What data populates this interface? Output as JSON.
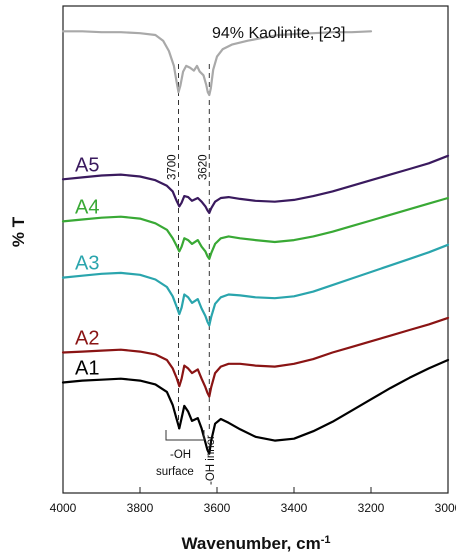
{
  "chart_data": {
    "type": "line",
    "title": "94% Kaolinite, [23]",
    "xlabel": "Wavenumber, cm",
    "xlabel_superscript": "-1",
    "ylabel": "% T",
    "xlim": [
      4000,
      3000
    ],
    "x_reversed": true,
    "x_ticks": [
      "4000",
      "3800",
      "3600",
      "3400",
      "3200",
      "3000"
    ],
    "y_ticks": [],
    "grid": false,
    "y_units": "relative transmittance, stacked with offsets",
    "markers": [
      {
        "x": 3700,
        "label": "3700",
        "style": "dashed"
      },
      {
        "x": 3620,
        "label": "3620",
        "style": "dashed"
      }
    ],
    "annotations": [
      {
        "text_lines": [
          "-OH",
          "surface"
        ],
        "near_x": 3690
      },
      {
        "text_lines": [
          "-OH inner"
        ],
        "near_x": 3620,
        "rotated": true
      }
    ],
    "series": [
      {
        "name": "A5",
        "color": "#3a1a5e",
        "x": [
          4000,
          3950,
          3900,
          3850,
          3800,
          3760,
          3730,
          3715,
          3705,
          3698,
          3692,
          3685,
          3675,
          3665,
          3650,
          3640,
          3630,
          3625,
          3620,
          3615,
          3605,
          3590,
          3570,
          3540,
          3500,
          3450,
          3400,
          3350,
          3300,
          3250,
          3200,
          3150,
          3100,
          3050,
          3000
        ],
        "y": [
          97.5,
          97.7,
          97.9,
          98.0,
          97.8,
          97.4,
          96.8,
          96.2,
          95.2,
          94.6,
          95.0,
          95.7,
          95.6,
          95.2,
          95.5,
          95.1,
          94.6,
          94.2,
          93.9,
          94.4,
          95.1,
          95.5,
          95.6,
          95.4,
          95.2,
          95.1,
          95.3,
          95.7,
          96.2,
          96.8,
          97.4,
          98.0,
          98.6,
          99.2,
          100.0
        ]
      },
      {
        "name": "A4",
        "color": "#39a935",
        "x": [
          4000,
          3950,
          3900,
          3850,
          3800,
          3760,
          3730,
          3715,
          3705,
          3698,
          3692,
          3685,
          3675,
          3665,
          3650,
          3640,
          3630,
          3625,
          3620,
          3615,
          3605,
          3590,
          3570,
          3540,
          3500,
          3450,
          3400,
          3350,
          3300,
          3250,
          3200,
          3150,
          3100,
          3050,
          3000
        ],
        "y": [
          93.0,
          93.2,
          93.4,
          93.5,
          93.3,
          92.8,
          92.1,
          91.2,
          90.4,
          89.8,
          90.3,
          91.2,
          91.0,
          90.6,
          91.0,
          90.3,
          89.8,
          89.3,
          89.0,
          89.6,
          90.6,
          91.2,
          91.4,
          91.2,
          91.0,
          90.8,
          91.0,
          91.4,
          91.9,
          92.5,
          93.1,
          93.7,
          94.3,
          94.9,
          95.5
        ]
      },
      {
        "name": "A3",
        "color": "#2aa5ad",
        "x": [
          4000,
          3950,
          3900,
          3850,
          3800,
          3760,
          3730,
          3715,
          3705,
          3698,
          3692,
          3685,
          3675,
          3665,
          3650,
          3640,
          3630,
          3625,
          3620,
          3615,
          3605,
          3590,
          3570,
          3540,
          3500,
          3450,
          3400,
          3350,
          3300,
          3250,
          3200,
          3150,
          3100,
          3050,
          3000
        ],
        "y": [
          87.0,
          87.2,
          87.4,
          87.5,
          87.3,
          86.8,
          86.0,
          85.0,
          83.9,
          83.1,
          83.8,
          85.2,
          84.9,
          84.3,
          84.7,
          83.7,
          82.9,
          82.3,
          81.9,
          82.8,
          84.2,
          84.9,
          85.2,
          85.1,
          84.9,
          84.8,
          85.0,
          85.5,
          86.2,
          86.9,
          87.6,
          88.3,
          89.0,
          89.7,
          90.5
        ]
      },
      {
        "name": "A2",
        "color": "#8a1414",
        "x": [
          4000,
          3950,
          3900,
          3850,
          3800,
          3760,
          3730,
          3715,
          3705,
          3698,
          3692,
          3685,
          3675,
          3665,
          3650,
          3640,
          3630,
          3625,
          3620,
          3615,
          3605,
          3590,
          3570,
          3540,
          3500,
          3450,
          3400,
          3350,
          3300,
          3250,
          3200,
          3150,
          3100,
          3050,
          3000
        ],
        "y": [
          79.0,
          79.1,
          79.2,
          79.3,
          79.1,
          78.8,
          78.2,
          77.3,
          76.3,
          75.4,
          76.2,
          77.6,
          77.3,
          76.8,
          77.2,
          76.2,
          75.3,
          74.7,
          74.3,
          75.3,
          76.8,
          77.5,
          77.8,
          77.8,
          77.6,
          77.5,
          77.8,
          78.3,
          79.0,
          79.6,
          80.2,
          80.8,
          81.4,
          82.0,
          82.7
        ]
      },
      {
        "name": "A1",
        "color": "#000000",
        "x": [
          4000,
          3950,
          3900,
          3850,
          3800,
          3760,
          3730,
          3715,
          3705,
          3698,
          3692,
          3685,
          3675,
          3665,
          3650,
          3640,
          3630,
          3625,
          3620,
          3615,
          3605,
          3590,
          3570,
          3540,
          3500,
          3450,
          3400,
          3350,
          3300,
          3250,
          3200,
          3150,
          3100,
          3050,
          3000
        ],
        "y": [
          75.8,
          76.0,
          76.1,
          76.2,
          76.0,
          75.6,
          74.8,
          73.4,
          71.9,
          70.9,
          72.0,
          73.3,
          72.7,
          71.7,
          72.0,
          70.9,
          69.4,
          68.6,
          68.2,
          69.6,
          71.4,
          71.9,
          71.5,
          70.8,
          70.0,
          69.6,
          69.8,
          70.6,
          71.6,
          72.8,
          74.0,
          75.2,
          76.3,
          77.3,
          78.2
        ]
      },
      {
        "name": "94% Kaolinite, [23]",
        "color": "#a9a9a9",
        "x": [
          4000,
          3950,
          3900,
          3850,
          3800,
          3760,
          3740,
          3725,
          3712,
          3705,
          3700,
          3695,
          3688,
          3680,
          3670,
          3660,
          3652,
          3645,
          3635,
          3628,
          3624,
          3620,
          3616,
          3610,
          3600,
          3585,
          3560,
          3520,
          3480,
          3440,
          3400,
          3350,
          3300,
          3250,
          3200
        ],
        "y": [
          113.3,
          113.3,
          113.2,
          113.2,
          113.1,
          112.9,
          112.3,
          111.2,
          109.6,
          107.9,
          106.8,
          107.5,
          109.0,
          109.6,
          109.4,
          109.1,
          109.6,
          109.0,
          108.6,
          107.6,
          106.8,
          106.5,
          107.2,
          109.2,
          110.6,
          111.4,
          111.9,
          112.3,
          112.6,
          112.9,
          113.0,
          113.1,
          113.2,
          113.2,
          113.3
        ]
      }
    ],
    "series_labels": [
      "A5",
      "A4",
      "A3",
      "A2",
      "A1"
    ]
  }
}
